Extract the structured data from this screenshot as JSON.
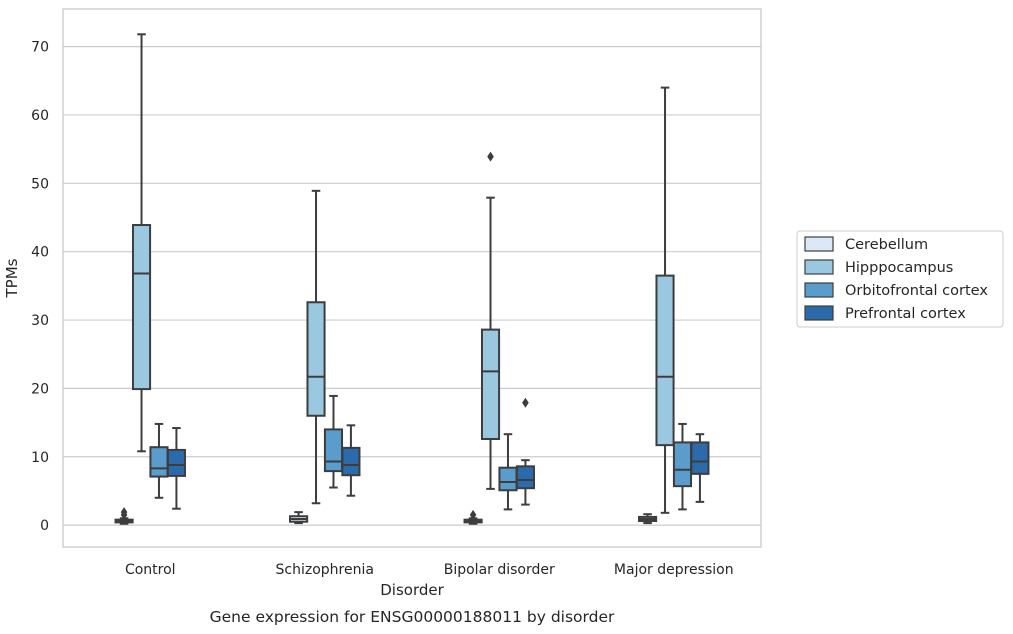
{
  "chart_data": {
    "type": "boxplot",
    "caption": "Gene expression for ENSG00000188011 by disorder",
    "xlabel": "Disorder",
    "ylabel": "TPMs",
    "ylim": [
      -3.2,
      75.5
    ],
    "yticks": [
      0,
      10,
      20,
      30,
      40,
      50,
      60,
      70
    ],
    "grid": "horizontal",
    "legend_position": "right",
    "categories": [
      "Control",
      "Schizophrenia",
      "Bipolar disorder",
      "Major depression"
    ],
    "series": [
      {
        "name": "Cerebellum",
        "color": "#dbe9f6",
        "boxes": [
          {
            "min": 0.2,
            "q1": 0.4,
            "median": 0.6,
            "q3": 0.8,
            "max": 1.0,
            "outliers": [
              1.5,
              1.9
            ]
          },
          {
            "min": 0.3,
            "q1": 0.5,
            "median": 0.9,
            "q3": 1.3,
            "max": 1.9,
            "outliers": []
          },
          {
            "min": 0.2,
            "q1": 0.4,
            "median": 0.6,
            "q3": 0.8,
            "max": 1.0,
            "outliers": [
              1.5
            ]
          },
          {
            "min": 0.3,
            "q1": 0.6,
            "median": 0.9,
            "q3": 1.2,
            "max": 1.6,
            "outliers": []
          }
        ]
      },
      {
        "name": "Hipppocampus",
        "color": "#9ac8e0",
        "boxes": [
          {
            "min": 10.8,
            "q1": 19.9,
            "median": 36.8,
            "q3": 43.9,
            "max": 71.8,
            "outliers": []
          },
          {
            "min": 3.2,
            "q1": 16.0,
            "median": 21.7,
            "q3": 32.6,
            "max": 48.9,
            "outliers": []
          },
          {
            "min": 5.3,
            "q1": 12.6,
            "median": 22.5,
            "q3": 28.6,
            "max": 47.9,
            "outliers": [
              53.9
            ]
          },
          {
            "min": 1.8,
            "q1": 11.7,
            "median": 21.7,
            "q3": 36.5,
            "max": 64.0,
            "outliers": []
          }
        ]
      },
      {
        "name": "Orbitofrontal cortex",
        "color": "#5a9ccc",
        "boxes": [
          {
            "min": 4.0,
            "q1": 7.1,
            "median": 8.3,
            "q3": 11.4,
            "max": 14.8,
            "outliers": []
          },
          {
            "min": 5.5,
            "q1": 7.9,
            "median": 9.3,
            "q3": 14.0,
            "max": 18.9,
            "outliers": []
          },
          {
            "min": 2.3,
            "q1": 5.1,
            "median": 6.3,
            "q3": 8.4,
            "max": 13.3,
            "outliers": []
          },
          {
            "min": 2.3,
            "q1": 5.7,
            "median": 8.1,
            "q3": 12.1,
            "max": 14.8,
            "outliers": []
          }
        ]
      },
      {
        "name": "Prefrontal cortex",
        "color": "#2b6aab",
        "boxes": [
          {
            "min": 2.4,
            "q1": 7.2,
            "median": 8.8,
            "q3": 11.0,
            "max": 14.2,
            "outliers": []
          },
          {
            "min": 4.3,
            "q1": 7.3,
            "median": 8.8,
            "q3": 11.3,
            "max": 14.6,
            "outliers": []
          },
          {
            "min": 3.0,
            "q1": 5.4,
            "median": 6.6,
            "q3": 8.6,
            "max": 9.5,
            "outliers": [
              17.9
            ]
          },
          {
            "min": 3.4,
            "q1": 7.5,
            "median": 9.3,
            "q3": 12.1,
            "max": 13.3,
            "outliers": []
          }
        ]
      }
    ]
  }
}
